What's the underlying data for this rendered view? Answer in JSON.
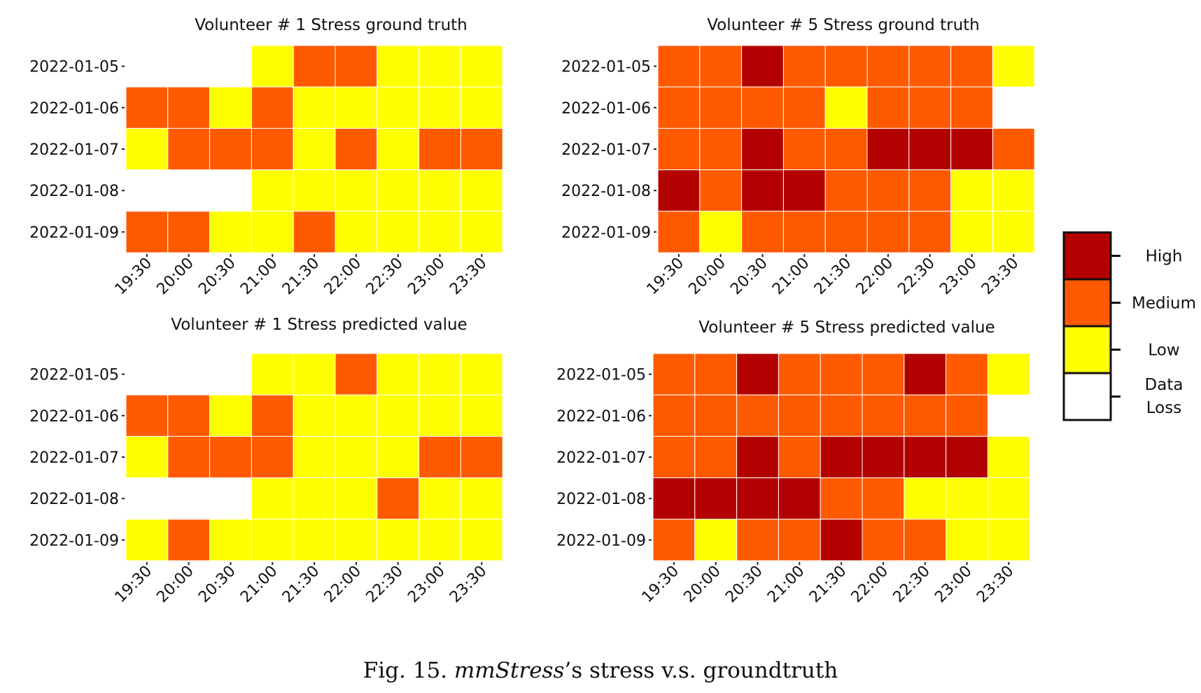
{
  "caption": {
    "label": "Fig. 15.",
    "name": "mmStress",
    "rest": "’s stress v.s. groundtruth"
  },
  "colors": {
    "High": "#b30000",
    "Medium": "#ff5a00",
    "Low": "#ffff00",
    "Data Loss": "#ffffff"
  },
  "legend": {
    "levels": [
      "High",
      "Medium",
      "Low"
    ],
    "loss_lines": [
      "Data",
      "Loss"
    ]
  },
  "chart_data": [
    {
      "type": "heatmap",
      "title": "Volunteer # 1 Stress ground truth",
      "x": [
        "19:30",
        "20:00",
        "20:30",
        "21:00",
        "21:30",
        "22:00",
        "22:30",
        "23:00",
        "23:30"
      ],
      "y": [
        "2022-01-05",
        "2022-01-06",
        "2022-01-07",
        "2022-01-08",
        "2022-01-09"
      ],
      "values": [
        [
          "Data Loss",
          "Data Loss",
          "Data Loss",
          "Low",
          "Medium",
          "Medium",
          "Low",
          "Low",
          "Low"
        ],
        [
          "Medium",
          "Medium",
          "Low",
          "Medium",
          "Low",
          "Low",
          "Low",
          "Low",
          "Low"
        ],
        [
          "Low",
          "Medium",
          "Medium",
          "Medium",
          "Low",
          "Medium",
          "Low",
          "Medium",
          "Medium"
        ],
        [
          "Data Loss",
          "Data Loss",
          "Data Loss",
          "Low",
          "Low",
          "Low",
          "Low",
          "Low",
          "Low"
        ],
        [
          "Medium",
          "Medium",
          "Low",
          "Low",
          "Medium",
          "Low",
          "Low",
          "Low",
          "Low"
        ]
      ]
    },
    {
      "type": "heatmap",
      "title": "Volunteer # 5 Stress ground truth",
      "x": [
        "19:30",
        "20:00",
        "20:30",
        "21:00",
        "21:30",
        "22:00",
        "22:30",
        "23:00",
        "23:30"
      ],
      "y": [
        "2022-01-05",
        "2022-01-06",
        "2022-01-07",
        "2022-01-08",
        "2022-01-09"
      ],
      "values": [
        [
          "Medium",
          "Medium",
          "High",
          "Medium",
          "Medium",
          "Medium",
          "Medium",
          "Medium",
          "Low"
        ],
        [
          "Medium",
          "Medium",
          "Medium",
          "Medium",
          "Low",
          "Medium",
          "Medium",
          "Medium",
          "Data Loss"
        ],
        [
          "Medium",
          "Medium",
          "High",
          "Medium",
          "Medium",
          "High",
          "High",
          "High",
          "Medium"
        ],
        [
          "High",
          "Medium",
          "High",
          "High",
          "Medium",
          "Medium",
          "Medium",
          "Low",
          "Low"
        ],
        [
          "Medium",
          "Low",
          "Medium",
          "Medium",
          "Medium",
          "Medium",
          "Medium",
          "Low",
          "Low"
        ]
      ]
    },
    {
      "type": "heatmap",
      "title": "Volunteer # 1 Stress predicted value",
      "x": [
        "19:30",
        "20:00",
        "20:30",
        "21:00",
        "21:30",
        "22:00",
        "22:30",
        "23:00",
        "23:30"
      ],
      "y": [
        "2022-01-05",
        "2022-01-06",
        "2022-01-07",
        "2022-01-08",
        "2022-01-09"
      ],
      "values": [
        [
          "Data Loss",
          "Data Loss",
          "Data Loss",
          "Low",
          "Low",
          "Medium",
          "Low",
          "Low",
          "Low"
        ],
        [
          "Medium",
          "Medium",
          "Low",
          "Medium",
          "Low",
          "Low",
          "Low",
          "Low",
          "Low"
        ],
        [
          "Low",
          "Medium",
          "Medium",
          "Medium",
          "Low",
          "Low",
          "Low",
          "Medium",
          "Medium"
        ],
        [
          "Data Loss",
          "Data Loss",
          "Data Loss",
          "Low",
          "Low",
          "Low",
          "Medium",
          "Low",
          "Low"
        ],
        [
          "Low",
          "Medium",
          "Low",
          "Low",
          "Low",
          "Low",
          "Low",
          "Low",
          "Low"
        ]
      ]
    },
    {
      "type": "heatmap",
      "title": "Volunteer # 5 Stress predicted value",
      "x": [
        "19:30",
        "20:00",
        "20:30",
        "21:00",
        "21:30",
        "22:00",
        "22:30",
        "23:00",
        "23:30"
      ],
      "y": [
        "2022-01-05",
        "2022-01-06",
        "2022-01-07",
        "2022-01-08",
        "2022-01-09"
      ],
      "values": [
        [
          "Medium",
          "Medium",
          "High",
          "Medium",
          "Medium",
          "Medium",
          "High",
          "Medium",
          "Low"
        ],
        [
          "Medium",
          "Medium",
          "Medium",
          "Medium",
          "Medium",
          "Medium",
          "Medium",
          "Medium",
          "Data Loss"
        ],
        [
          "Medium",
          "Medium",
          "High",
          "Medium",
          "High",
          "High",
          "High",
          "High",
          "Low"
        ],
        [
          "High",
          "High",
          "High",
          "High",
          "Medium",
          "Medium",
          "Low",
          "Low",
          "Low"
        ],
        [
          "Medium",
          "Low",
          "Medium",
          "Medium",
          "High",
          "Medium",
          "Medium",
          "Low",
          "Low"
        ]
      ]
    }
  ]
}
